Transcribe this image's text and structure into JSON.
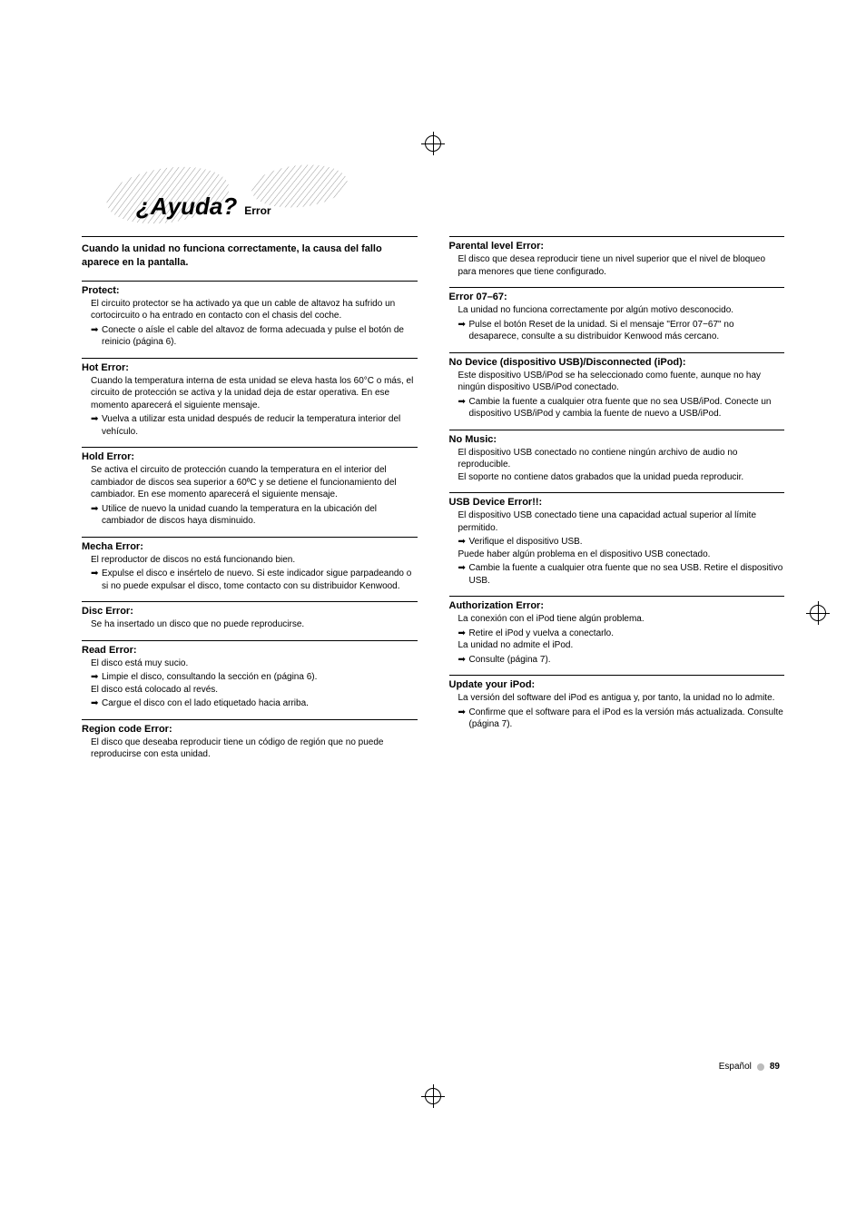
{
  "heading": {
    "main": "¿Ayuda?",
    "sub": "Error"
  },
  "intro": "Cuando la unidad no funciona correctamente, la causa del fallo aparece en la pantalla.",
  "left_sections": [
    {
      "title": "Protect:",
      "body": "El circuito protector se ha activado ya que un cable de altavoz ha sufrido un cortocircuito o ha entrado en contacto con el chasis del coche.",
      "actions": [
        "Conecte o aísle el cable del altavoz de forma adecuada y pulse el botón de reinicio (página 6)."
      ]
    },
    {
      "title": "Hot Error:",
      "body": "Cuando la temperatura interna de esta unidad se eleva hasta los 60°C o más, el circuito de protección se activa y la unidad deja de estar operativa. En ese momento aparecerá el siguiente mensaje.",
      "actions": [
        "Vuelva a utilizar esta unidad después de reducir la temperatura interior del vehículo."
      ]
    },
    {
      "title": "Hold Error:",
      "body": "Se activa el circuito de protección cuando la temperatura en el interior del cambiador de discos sea superior a 60ºC y se detiene el funcionamiento del cambiador. En ese momento aparecerá el siguiente mensaje.",
      "actions": [
        "Utilice de nuevo la unidad cuando la temperatura en la ubicación del cambiador de discos haya disminuido."
      ]
    },
    {
      "title": "Mecha Error:",
      "body": "El reproductor de discos no está funcionando bien.",
      "actions": [
        "Expulse el disco e insértelo de nuevo. Si este indicador sigue parpadeando o si no puede expulsar el disco, tome contacto con su distribuidor Kenwood."
      ]
    },
    {
      "title": "Disc Error:",
      "body": "Se ha insertado un disco que no puede reproducirse.",
      "actions": []
    },
    {
      "title": "Read Error:",
      "body": "El disco está muy sucio.",
      "actions": [
        "Limpie el disco, consultando la sección en <Manejo de discos> (página 6)."
      ],
      "body2": "El disco está colocado al revés.",
      "actions2": [
        "Cargue el disco con el lado etiquetado hacia arriba."
      ]
    },
    {
      "title": "Region code Error:",
      "body": "El disco que deseaba reproducir tiene un código de región que no puede reproducirse con esta unidad.",
      "actions": []
    }
  ],
  "right_sections": [
    {
      "title": "Parental level Error:",
      "body": "El disco que desea reproducir tiene un nivel superior que el nivel de bloqueo para menores que tiene configurado.",
      "actions": []
    },
    {
      "title": "Error 07–67:",
      "body": "La unidad no funciona correctamente por algún motivo desconocido.",
      "actions": [
        "Pulse el botón Reset de la unidad. Si el mensaje \"Error 07−67\" no desaparece, consulte a su distribuidor Kenwood más cercano."
      ]
    },
    {
      "title": "No Device (dispositivo USB)/Disconnected (iPod):",
      "body": "Este dispositivo USB/iPod se ha seleccionado como fuente, aunque no hay ningún dispositivo USB/iPod conectado.",
      "actions": [
        "Cambie la fuente a cualquier otra fuente que no sea USB/iPod. Conecte un dispositivo USB/iPod y cambia la fuente de nuevo a USB/iPod."
      ]
    },
    {
      "title": "No Music:",
      "body": "El dispositivo USB conectado no contiene ningún archivo de audio no reproducible.\nEl soporte no contiene datos grabados que la unidad pueda reproducir.",
      "actions": []
    },
    {
      "title": "USB Device Error!!:",
      "body": "El dispositivo USB conectado tiene una capacidad actual superior al límite permitido.",
      "actions": [
        "Verifique el dispositivo USB."
      ],
      "body2": "Puede haber algún problema en el dispositivo USB conectado.",
      "actions2": [
        "Cambie la fuente a cualquier otra fuente que no sea USB. Retire el dispositivo USB."
      ]
    },
    {
      "title": "Authorization Error:",
      "body": "La conexión con el iPod tiene algún problema.",
      "actions": [
        "Retire el iPod y vuelva a conectarlo."
      ],
      "body2": "La unidad no admite el iPod.",
      "actions2": [
        "Consulte <iPod que puede conectarse a esta unidad> (página 7)."
      ]
    },
    {
      "title": "Update your iPod:",
      "body": "La versión del software del iPod es antigua y, por tanto, la unidad no lo admite.",
      "actions": [
        "Confirme que el software para el iPod es la versión más actualizada. Consulte <iPod que puede conectarse a esta unidad> (página 7)."
      ]
    }
  ],
  "footer": {
    "lang": "Español",
    "page": "89"
  },
  "colors": {
    "text": "#000000",
    "bg": "#ffffff",
    "bullet": "#bbbbbb"
  }
}
